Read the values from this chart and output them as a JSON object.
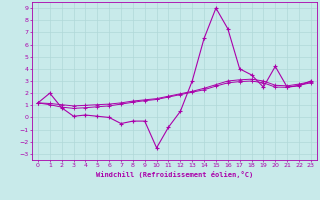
{
  "xlabel": "Windchill (Refroidissement éolien,°C)",
  "ylabel": "",
  "background_color": "#c8eaea",
  "grid_color": "#b0d8d8",
  "line_color": "#aa00aa",
  "xlim": [
    -0.5,
    23.5
  ],
  "ylim": [
    -3.5,
    9.5
  ],
  "yticks": [
    -3,
    -2,
    -1,
    0,
    1,
    2,
    3,
    4,
    5,
    6,
    7,
    8,
    9
  ],
  "xticks": [
    0,
    1,
    2,
    3,
    4,
    5,
    6,
    7,
    8,
    9,
    10,
    11,
    12,
    13,
    14,
    15,
    16,
    17,
    18,
    19,
    20,
    21,
    22,
    23
  ],
  "main_line": [
    1.2,
    2.0,
    0.8,
    0.1,
    0.2,
    0.1,
    0.0,
    -0.5,
    -0.3,
    -0.3,
    -2.5,
    -0.8,
    0.5,
    3.0,
    6.5,
    9.0,
    7.3,
    4.0,
    3.5,
    2.5,
    4.2,
    2.5,
    2.6,
    3.0
  ],
  "trend_line1": [
    1.2,
    1.15,
    1.05,
    0.95,
    1.0,
    1.05,
    1.1,
    1.2,
    1.35,
    1.45,
    1.55,
    1.75,
    1.95,
    2.15,
    2.4,
    2.7,
    3.0,
    3.1,
    3.15,
    3.0,
    2.65,
    2.6,
    2.75,
    2.95
  ],
  "trend_line2": [
    1.2,
    1.05,
    0.85,
    0.75,
    0.8,
    0.88,
    0.95,
    1.1,
    1.25,
    1.38,
    1.48,
    1.68,
    1.88,
    2.08,
    2.28,
    2.58,
    2.85,
    2.95,
    3.0,
    2.85,
    2.5,
    2.48,
    2.65,
    2.85
  ]
}
